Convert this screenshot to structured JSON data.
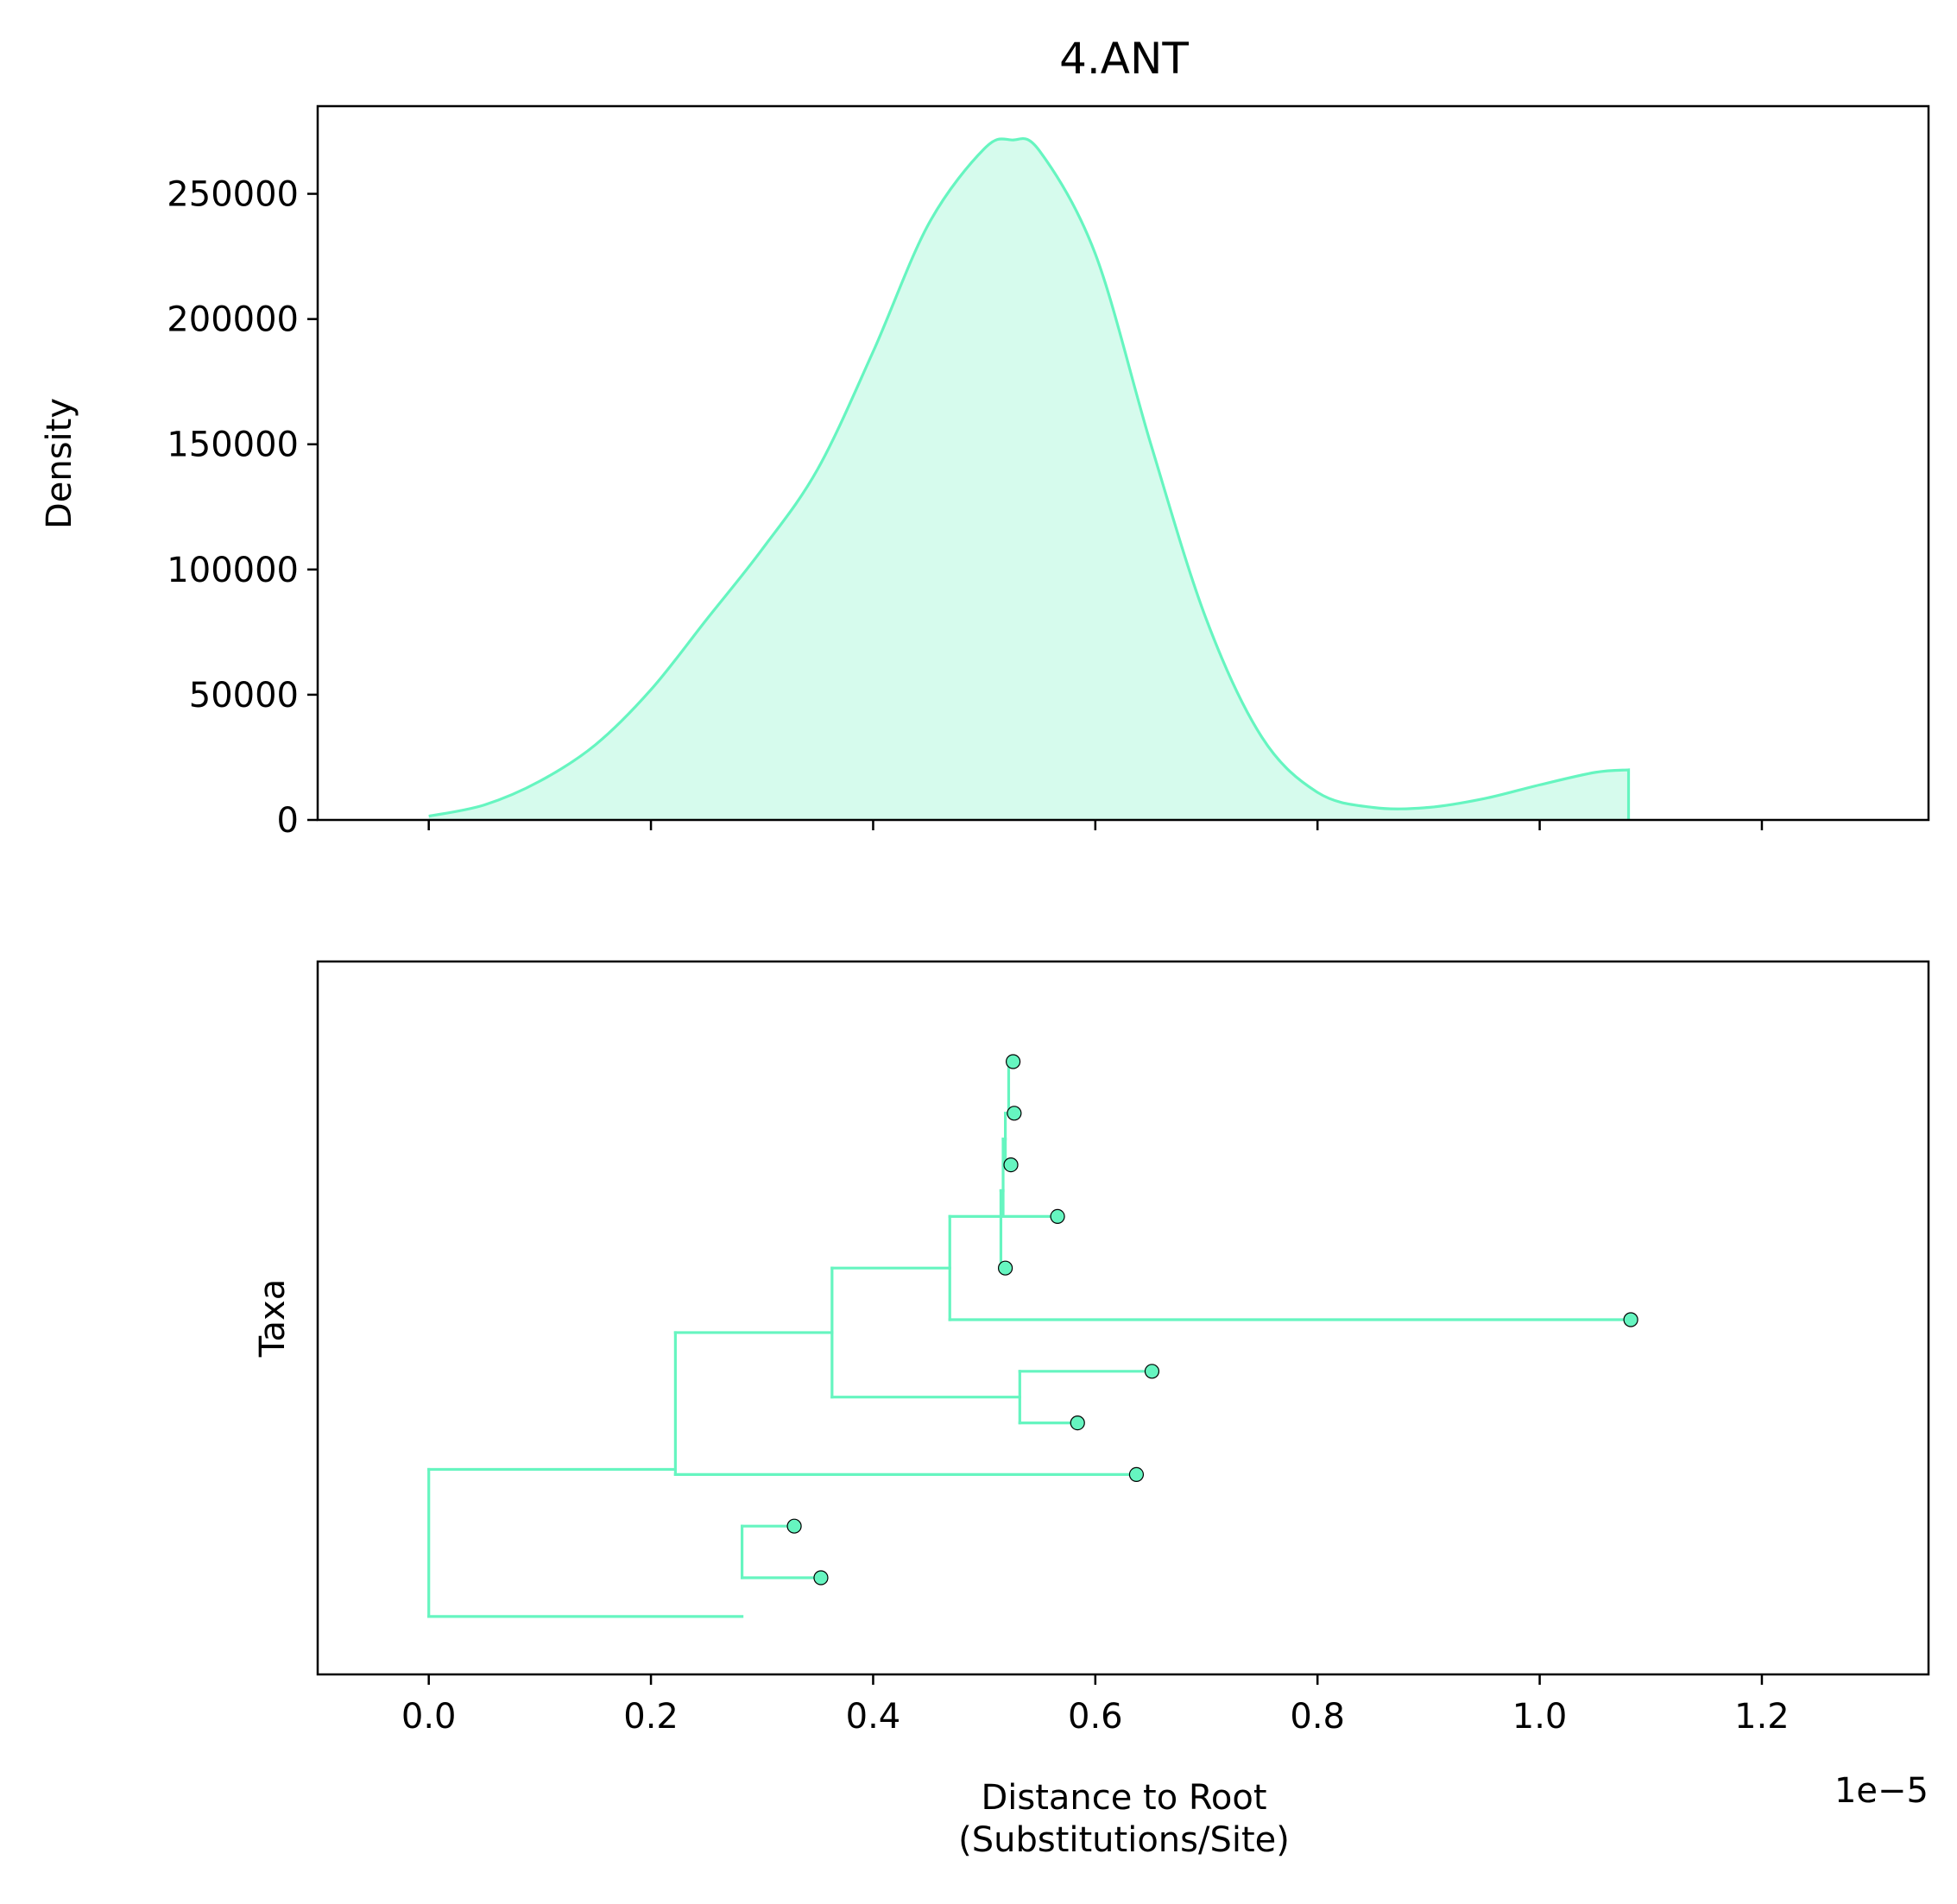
{
  "figure": {
    "title": "4.ANT"
  },
  "chart_data": [
    {
      "type": "area",
      "panel": "top",
      "title": "4.ANT",
      "ylabel": "Density",
      "xlabel": "",
      "xlim": [
        -1e-06,
        1.35e-05
      ],
      "ylim": [
        0,
        285000
      ],
      "yticks": [
        0,
        50000,
        100000,
        150000,
        200000,
        250000
      ],
      "ytick_labels": [
        "0",
        "50000",
        "100000",
        "150000",
        "200000",
        "250000"
      ],
      "xticks": [
        0.0,
        2e-06,
        4e-06,
        6e-06,
        8e-06,
        1e-05,
        1.2e-05
      ],
      "grid": false,
      "color": "#66f5c0",
      "fill_color": "#d6fbed",
      "series": [
        {
          "x": [
            0.0,
            5e-07,
            1e-06,
            1.5e-06,
            2e-06,
            2.5e-06,
            3e-06,
            3.5e-06,
            4e-06,
            4.5e-06,
            5e-06,
            5.25e-06,
            5.5e-06,
            6e-06,
            6.5e-06,
            7e-06,
            7.5e-06,
            8e-06,
            8.5e-06,
            9e-06,
            9.5e-06,
            1e-05,
            1.05e-05,
            1.08e-05
          ],
          "values": [
            1500,
            6000,
            15500,
            30000,
            52000,
            80000,
            108000,
            140000,
            187000,
            238000,
            268000,
            271500,
            267000,
            226000,
            150000,
            80000,
            33000,
            11000,
            5000,
            5000,
            8500,
            14000,
            19000,
            20000
          ]
        }
      ]
    },
    {
      "type": "tree",
      "panel": "bottom",
      "ylabel": "Taxa",
      "xlabel": "Distance to Root\n(Substitutions/Site)",
      "xlabel_lines": [
        "Distance to Root",
        "(Substitutions/Site)"
      ],
      "offset_label": "1e−5",
      "xlim": [
        -1e-06,
        1.35e-05
      ],
      "xticks": [
        0.0,
        2e-06,
        4e-06,
        6e-06,
        8e-06,
        1e-05,
        1.2e-05
      ],
      "xtick_labels": [
        "0.0",
        "0.2",
        "0.4",
        "0.6",
        "0.8",
        "1.0",
        "1.2"
      ],
      "grid": false,
      "color": "#66f5c0",
      "tip_color": "#66f5c0",
      "tips": [
        {
          "x": 5.26e-06,
          "y": 1
        },
        {
          "x": 5.27e-06,
          "y": 2
        },
        {
          "x": 5.24e-06,
          "y": 3
        },
        {
          "x": 5.66e-06,
          "y": 4
        },
        {
          "x": 5.19e-06,
          "y": 5
        },
        {
          "x": 1.082e-05,
          "y": 6
        },
        {
          "x": 6.51e-06,
          "y": 7
        },
        {
          "x": 5.84e-06,
          "y": 8
        },
        {
          "x": 6.37e-06,
          "y": 9
        },
        {
          "x": 3.29e-06,
          "y": 10
        },
        {
          "x": 3.53e-06,
          "y": 11
        }
      ],
      "branches": [
        {
          "x0": 0.0,
          "x1": 0.0,
          "y0": 8.9,
          "y1": 11.75
        },
        {
          "x0": 0.0,
          "x1": 2.22e-06,
          "y0": 8.9,
          "y1": 8.9
        },
        {
          "x0": 0.0,
          "x1": 2.82e-06,
          "y0": 11.75,
          "y1": 11.75
        },
        {
          "x0": 2.82e-06,
          "x1": 2.82e-06,
          "y0": 10,
          "y1": 11
        },
        {
          "x0": 2.82e-06,
          "x1": 3.29e-06,
          "y0": 10,
          "y1": 10
        },
        {
          "x0": 2.82e-06,
          "x1": 3.53e-06,
          "y0": 11,
          "y1": 11
        },
        {
          "x0": 2.22e-06,
          "x1": 2.22e-06,
          "y0": 6.25,
          "y1": 9
        },
        {
          "x0": 2.22e-06,
          "x1": 3.63e-06,
          "y0": 6.25,
          "y1": 6.25
        },
        {
          "x0": 2.22e-06,
          "x1": 6.37e-06,
          "y0": 9,
          "y1": 9
        },
        {
          "x0": 3.63e-06,
          "x1": 3.63e-06,
          "y0": 5,
          "y1": 7.5
        },
        {
          "x0": 3.63e-06,
          "x1": 4.69e-06,
          "y0": 5,
          "y1": 5
        },
        {
          "x0": 3.63e-06,
          "x1": 5.32e-06,
          "y0": 7.5,
          "y1": 7.5
        },
        {
          "x0": 5.32e-06,
          "x1": 5.32e-06,
          "y0": 7,
          "y1": 8
        },
        {
          "x0": 5.32e-06,
          "x1": 6.51e-06,
          "y0": 7,
          "y1": 7
        },
        {
          "x0": 5.32e-06,
          "x1": 5.84e-06,
          "y0": 8,
          "y1": 8
        },
        {
          "x0": 4.69e-06,
          "x1": 4.69e-06,
          "y0": 4,
          "y1": 6
        },
        {
          "x0": 4.69e-06,
          "x1": 5.15e-06,
          "y0": 4,
          "y1": 4
        },
        {
          "x0": 4.69e-06,
          "x1": 1.082e-05,
          "y0": 6,
          "y1": 6
        },
        {
          "x0": 5.15e-06,
          "x1": 5.15e-06,
          "y0": 3.5,
          "y1": 5
        },
        {
          "x0": 5.15e-06,
          "x1": 5.19e-06,
          "y0": 5,
          "y1": 5
        },
        {
          "x0": 5.15e-06,
          "x1": 5.17e-06,
          "y0": 3.5,
          "y1": 3.5
        },
        {
          "x0": 5.17e-06,
          "x1": 5.17e-06,
          "y0": 2.5,
          "y1": 4
        },
        {
          "x0": 5.17e-06,
          "x1": 5.66e-06,
          "y0": 4,
          "y1": 4
        },
        {
          "x0": 5.17e-06,
          "x1": 5.19e-06,
          "y0": 2.5,
          "y1": 2.5
        },
        {
          "x0": 5.19e-06,
          "x1": 5.19e-06,
          "y0": 2,
          "y1": 3
        },
        {
          "x0": 5.19e-06,
          "x1": 5.24e-06,
          "y0": 3,
          "y1": 3
        },
        {
          "x0": 5.19e-06,
          "x1": 5.22e-06,
          "y0": 2,
          "y1": 2
        },
        {
          "x0": 5.22e-06,
          "x1": 5.22e-06,
          "y0": 1,
          "y1": 2
        },
        {
          "x0": 5.22e-06,
          "x1": 5.26e-06,
          "y0": 1,
          "y1": 1
        },
        {
          "x0": 5.22e-06,
          "x1": 5.27e-06,
          "y0": 2,
          "y1": 2
        }
      ]
    }
  ]
}
